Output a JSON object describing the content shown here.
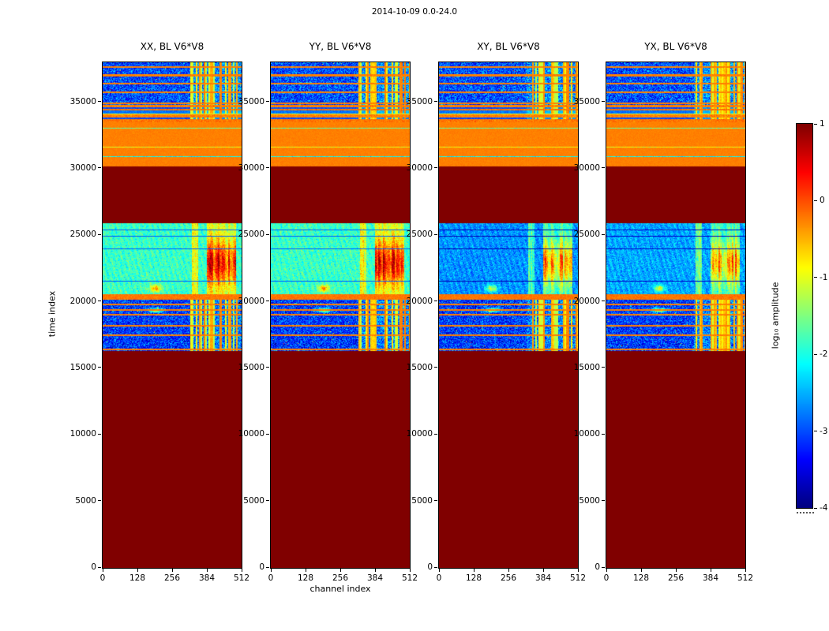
{
  "figure": {
    "suptitle": "2014-10-09 0.0-24.0",
    "background_color": "#ffffff"
  },
  "chart_data": {
    "type": "heatmap",
    "title": "2014-10-09 0.0-24.0",
    "xlabel": "channel index",
    "ylabel": "time index",
    "x_range": [
      0,
      512
    ],
    "y_range": [
      0,
      38000
    ],
    "xticks": [
      0,
      128,
      256,
      384,
      512
    ],
    "yticks": [
      0,
      5000,
      10000,
      15000,
      20000,
      25000,
      30000,
      35000
    ],
    "panels": [
      {
        "title": "XX, BL V6*V8"
      },
      {
        "title": "YY, BL V6*V8"
      },
      {
        "title": "XY, BL V6*V8"
      },
      {
        "title": "YX, BL V6*V8"
      }
    ],
    "colorbar": {
      "label": "log₁₀ amplitude",
      "ticks": [
        1,
        0,
        -1,
        -2,
        -3,
        -4
      ],
      "range": [
        -4,
        1
      ],
      "colormap": "jet"
    },
    "render": {
      "ymax": 38000,
      "rfi_start": 322,
      "bands": [
        {
          "kind": "flat",
          "t0": 0,
          "t1": 16300,
          "base": 1.0
        },
        {
          "kind": "noise",
          "t0": 16300,
          "t1": 20150,
          "base": -3.1,
          "noise": 0.6,
          "rfi": true,
          "hline_level": -0.25,
          "hlines": [
            {
              "t": 16450,
              "hw": 60
            },
            {
              "t": 17480,
              "hw": 40
            },
            {
              "t": 18190,
              "hw": 40
            },
            {
              "t": 19020,
              "hw": 40
            },
            {
              "t": 19380,
              "hw": 40
            },
            {
              "t": 19800,
              "hw": 70
            }
          ],
          "hotspots": [
            {
              "c": 195,
              "t": 19370,
              "cs": 28,
              "ts": 160,
              "amp": 2.1
            }
          ]
        },
        {
          "kind": "noise",
          "t0": 20150,
          "t1": 20600,
          "base": -0.2,
          "noise": 0.12,
          "rfi": false
        },
        {
          "kind": "science",
          "t0": 20600,
          "t1": 25900,
          "base_per_panel": [
            -1.85,
            -1.85,
            -2.65,
            -2.55
          ],
          "noise": 0.35,
          "side_col_start": 328,
          "side_col_end": 352,
          "side_amp": 1.2,
          "rfi_col_start": 384,
          "rfi_col_end": 492,
          "blob_center": 22900,
          "blob_sigma": 1600,
          "blob_amp": 1.8,
          "dark_hlines": [
            21550,
            23980,
            24930,
            25420
          ],
          "hotspots": [
            {
              "c": 195,
              "t": 21000,
              "cs": 20,
              "ts": 260,
              "amp": 1.5
            }
          ]
        },
        {
          "kind": "flat",
          "t0": 25900,
          "t1": 30150,
          "base": 1.0
        },
        {
          "kind": "noise",
          "t0": 30150,
          "t1": 33500,
          "base": -0.25,
          "noise": 0.05,
          "rfi": false,
          "lines": [
            {
              "t": 30900,
              "a": -2.1,
              "hw": 35,
              "nz": 0.5
            },
            {
              "t": 31600,
              "a": -1.0,
              "hw": 30,
              "nz": 0.3
            },
            {
              "t": 33050,
              "a": -1.6,
              "hw": 30,
              "nz": 0.4
            }
          ]
        },
        {
          "kind": "stripes",
          "t0": 33500,
          "t1": 34800,
          "noise": 0.18,
          "rfi": true,
          "stripes": [
            [
              33500,
              33720,
              -0.2
            ],
            [
              33720,
              33830,
              -3.0
            ],
            [
              33830,
              34060,
              -0.25
            ],
            [
              34060,
              34170,
              -1.0
            ],
            [
              34170,
              34370,
              -2.8
            ],
            [
              34370,
              34530,
              -0.2
            ],
            [
              34530,
              34630,
              -3.0
            ],
            [
              34630,
              34800,
              -0.25
            ]
          ]
        },
        {
          "kind": "noise",
          "t0": 34800,
          "t1": 38000,
          "base": -3.0,
          "noise": 0.6,
          "rfi": true,
          "hline_level": -0.25,
          "hlines": [
            {
              "t": 34930,
              "hw": 45
            },
            {
              "t": 35760,
              "hw": 45
            },
            {
              "t": 36400,
              "hw": 40
            },
            {
              "t": 37050,
              "hw": 90
            },
            {
              "t": 37640,
              "hw": 45
            }
          ]
        }
      ]
    }
  }
}
